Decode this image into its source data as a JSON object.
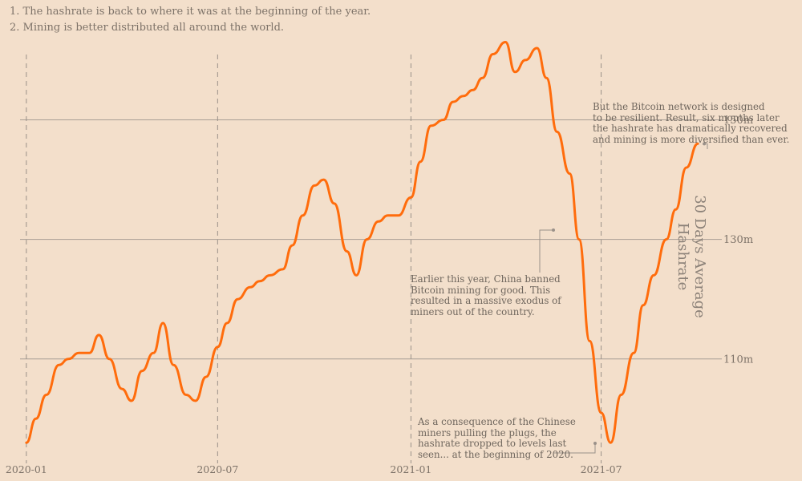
{
  "notes": [
    "1. The hashrate is back to where it was at the beginning of the year.",
    "2. Mining is better distributed all around the world."
  ],
  "annotations": {
    "resilient": [
      "But the Bitcoin network is designed",
      "to be resilient. Result, six months later",
      "the hashrate has dramatically recovered",
      "and mining is more diversified than ever."
    ],
    "china_ban": [
      "Earlier this year, China banned",
      "Bitcoin mining for good. This",
      "resulted in a massive exodus of",
      "miners out of the country."
    ],
    "dropped": [
      "As a consequence of the Chinese",
      "miners pulling the plugs, the",
      "hashrate dropped to levels last",
      "seen... at the beginning of 2020."
    ]
  },
  "colors": {
    "background": "#f3dfcb",
    "line": "#ff6c0c",
    "grid": "#a69d94",
    "text": "#7d7268"
  },
  "chart_data": {
    "type": "line",
    "ylabel": "30 Days Average Hashrate",
    "y_ticks": [
      "110m",
      "130m",
      "150m"
    ],
    "y_tick_values": [
      110,
      130,
      150
    ],
    "x_ticks": [
      "2020-01",
      "2020-07",
      "2021-01",
      "2021-07"
    ],
    "x_tick_values": [
      "2020-01-01",
      "2020-07-01",
      "2021-01-01",
      "2021-07-01"
    ],
    "ylim": [
      92,
      162
    ],
    "xlim": [
      "2019-12-26",
      "2021-10-20"
    ],
    "grid": "horizontal",
    "series": [
      {
        "x": [
          "2020-01-01",
          "2020-01-10",
          "2020-01-20",
          "2020-02-01",
          "2020-02-10",
          "2020-02-20",
          "2020-03-01",
          "2020-03-10",
          "2020-03-20",
          "2020-04-01",
          "2020-04-10",
          "2020-04-20",
          "2020-05-01",
          "2020-05-10",
          "2020-05-20",
          "2020-06-01",
          "2020-06-10",
          "2020-06-20",
          "2020-07-01",
          "2020-07-10",
          "2020-07-20",
          "2020-08-01",
          "2020-08-10",
          "2020-08-20",
          "2020-09-01",
          "2020-09-10",
          "2020-09-20",
          "2020-10-01",
          "2020-10-10",
          "2020-10-20",
          "2020-11-01",
          "2020-11-10",
          "2020-11-20",
          "2020-12-01",
          "2020-12-10",
          "2020-12-20",
          "2021-01-01",
          "2021-01-10",
          "2021-01-20",
          "2021-02-01",
          "2021-02-10",
          "2021-02-20",
          "2021-03-01",
          "2021-03-10",
          "2021-03-20",
          "2021-04-01",
          "2021-04-10",
          "2021-04-20",
          "2021-05-01",
          "2021-05-10",
          "2021-05-20",
          "2021-06-01",
          "2021-06-10",
          "2021-06-20",
          "2021-07-01",
          "2021-07-10",
          "2021-07-20",
          "2021-08-01",
          "2021-08-10",
          "2021-08-20",
          "2021-09-01",
          "2021-09-10",
          "2021-09-20",
          "2021-10-01"
        ],
        "values": [
          96,
          100,
          104,
          109,
          110,
          111,
          111,
          114,
          110,
          105,
          103,
          108,
          111,
          116,
          109,
          104,
          103,
          107,
          112,
          116,
          120,
          122,
          123,
          124,
          125,
          129,
          134,
          139,
          140,
          136,
          128,
          124,
          130,
          133,
          134,
          134,
          137,
          143,
          149,
          150,
          153,
          154,
          155,
          157,
          161,
          163,
          158,
          160,
          162,
          157,
          148,
          141,
          130,
          113,
          101,
          96,
          104,
          111,
          119,
          124,
          130,
          135,
          142,
          146
        ]
      }
    ]
  }
}
